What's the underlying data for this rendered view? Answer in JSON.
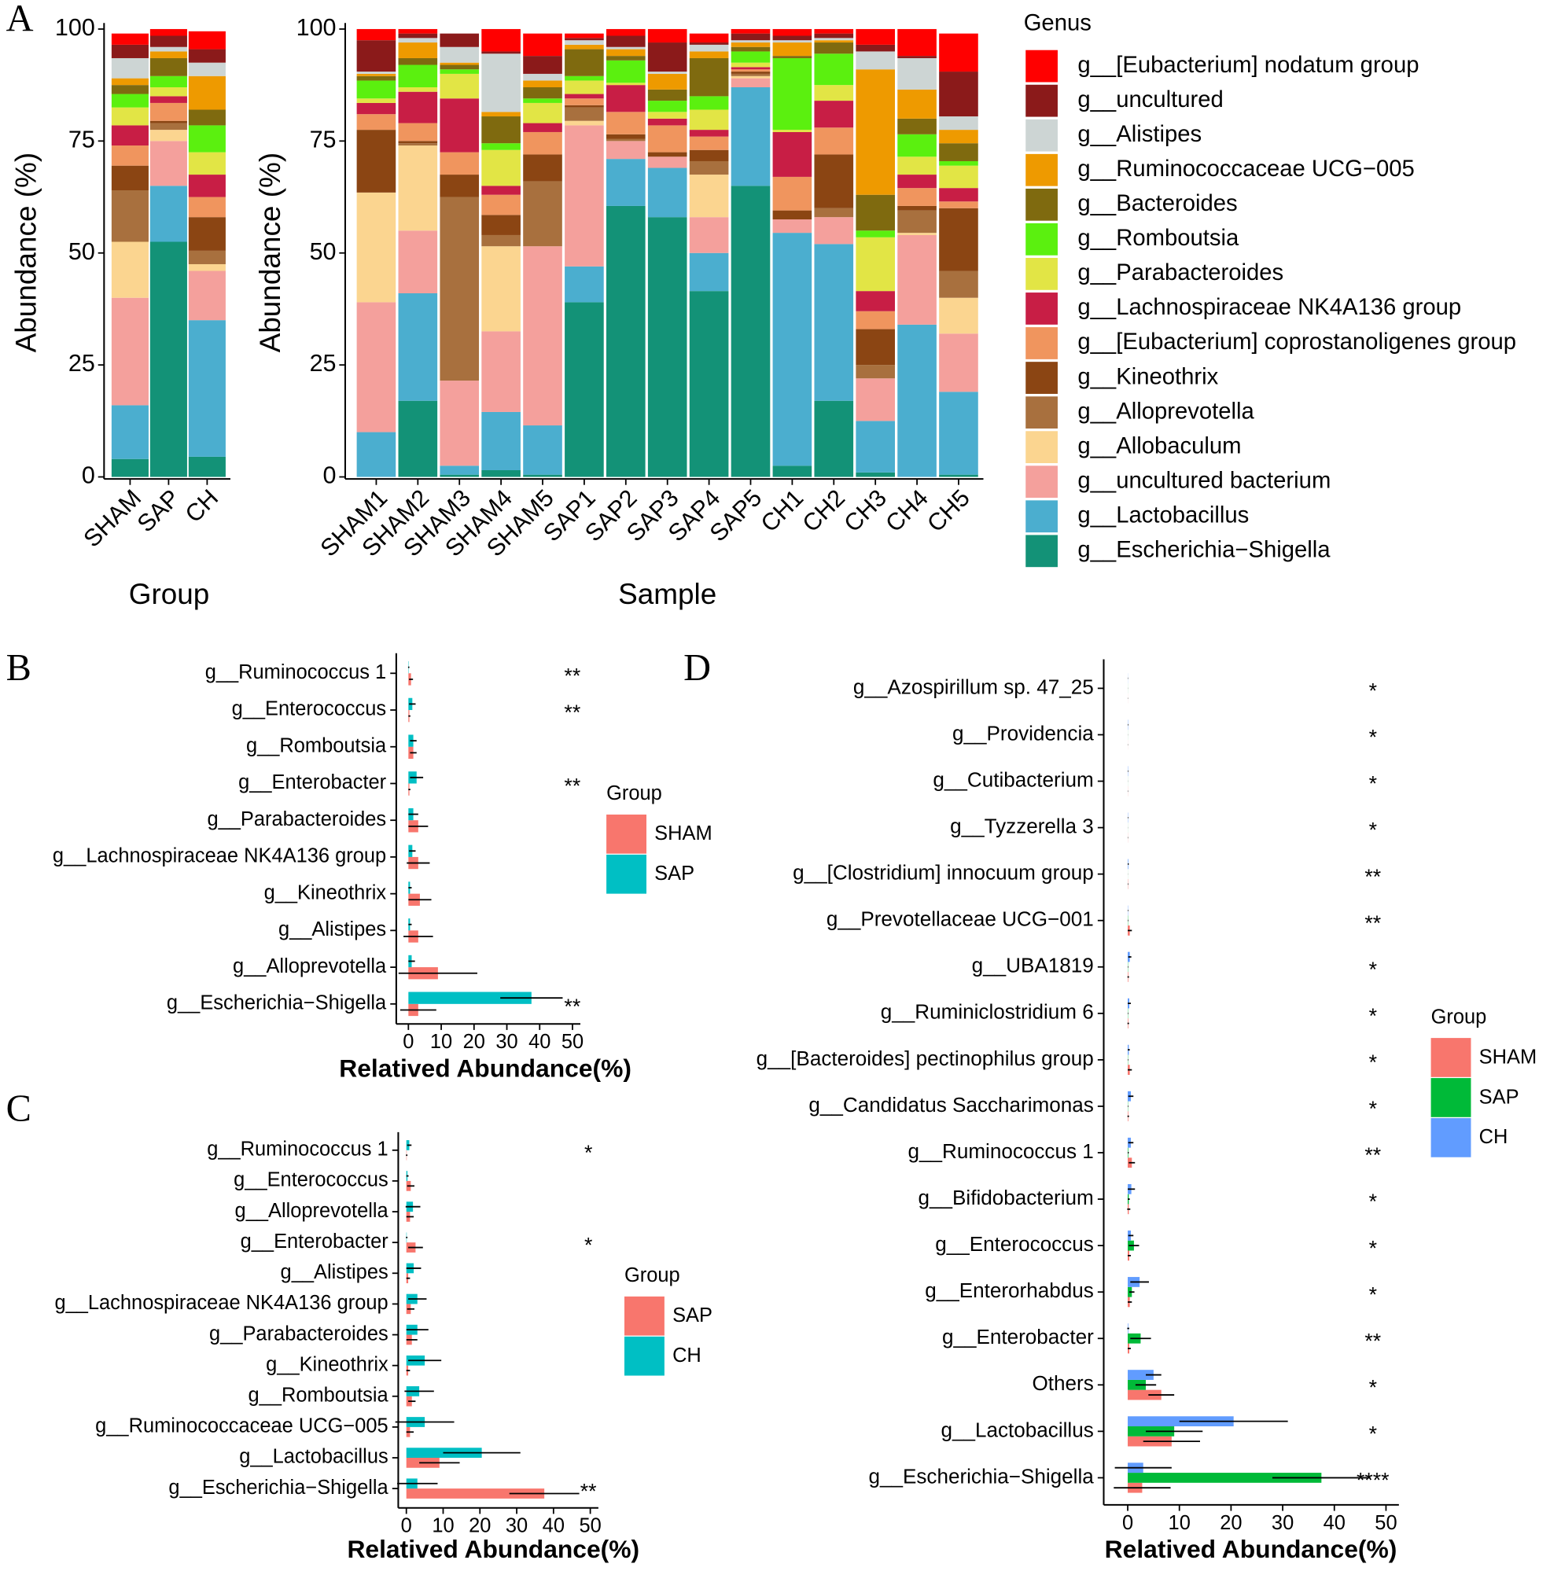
{
  "chart_data": [
    {
      "type": "stacked_bar",
      "panel_label": "A",
      "x_label": "Group",
      "y_label": "Abundance (%)",
      "categories": [
        "SHAM",
        "SAP",
        "CH"
      ],
      "ylim": [
        0,
        100
      ],
      "yticks": [
        0,
        25,
        50,
        75,
        100
      ],
      "series": [
        {
          "color": "#139277",
          "values": [
            4,
            52.5,
            4.5
          ]
        },
        {
          "color": "#4BAECF",
          "values": [
            12,
            12.5,
            30.5
          ]
        },
        {
          "color": "#F4A09C",
          "values": [
            24,
            10,
            11
          ]
        },
        {
          "color": "#FBD590",
          "values": [
            12.5,
            2.5,
            1.5
          ]
        },
        {
          "color": "#A8703E",
          "values": [
            11.5,
            1.5,
            3
          ]
        },
        {
          "color": "#8B4513",
          "values": [
            5.5,
            0.5,
            7.5
          ]
        },
        {
          "color": "#F0955E",
          "values": [
            4.5,
            4,
            4.5
          ]
        },
        {
          "color": "#C81E45",
          "values": [
            4.5,
            1.5,
            5
          ]
        },
        {
          "color": "#E2E545",
          "values": [
            4,
            2,
            5
          ]
        },
        {
          "color": "#5BF00F",
          "values": [
            3,
            2.5,
            6
          ]
        },
        {
          "color": "#7F6A0F",
          "values": [
            2,
            4,
            3.5
          ]
        },
        {
          "color": "#EE9A00",
          "values": [
            1.5,
            1.5,
            7.5
          ]
        },
        {
          "color": "#CDD5D4",
          "values": [
            4.5,
            1,
            3
          ]
        },
        {
          "color": "#8B1A1A",
          "values": [
            3,
            2.5,
            3
          ]
        },
        {
          "color": "#FF0000",
          "values": [
            2.5,
            1.5,
            4
          ]
        }
      ]
    },
    {
      "type": "stacked_bar",
      "x_label": "Sample",
      "y_label": "Abundance (%)",
      "legend_title": "Genus",
      "categories": [
        "SHAM1",
        "SHAM2",
        "SHAM3",
        "SHAM4",
        "SHAM5",
        "SAP1",
        "SAP2",
        "SAP3",
        "SAP4",
        "SAP5",
        "CH1",
        "CH2",
        "CH3",
        "CH4",
        "CH5"
      ],
      "ylim": [
        0,
        100
      ],
      "yticks": [
        0,
        25,
        50,
        75,
        100
      ],
      "series": [
        {
          "name": "g__Escherichia−Shigella",
          "color": "#139277",
          "values": [
            0,
            17,
            0.5,
            1.5,
            0.5,
            39,
            60.5,
            58,
            41.5,
            65,
            2.5,
            17,
            1,
            0,
            0.5
          ]
        },
        {
          "name": "g__Lactobacillus",
          "color": "#4BAECF",
          "values": [
            10,
            24,
            2,
            13,
            11,
            8,
            10.5,
            11,
            8.5,
            22,
            52,
            35,
            11.5,
            34,
            18.5
          ]
        },
        {
          "name": "g__uncultured bacterium",
          "color": "#F4A09C",
          "values": [
            29,
            14,
            19,
            18,
            40,
            31.5,
            4,
            2.5,
            8,
            2,
            3,
            6,
            9.5,
            20,
            13
          ]
        },
        {
          "name": "g__Allobaculum",
          "color": "#FBD590",
          "values": [
            24.5,
            19,
            0,
            19,
            0,
            1,
            0,
            0,
            9.5,
            0.5,
            0,
            0,
            0,
            0.5,
            8
          ]
        },
        {
          "name": "g__Alloprevotella",
          "color": "#A8703E",
          "values": [
            0,
            0.5,
            41,
            2.5,
            14.5,
            3,
            0.5,
            0,
            3,
            0.5,
            0,
            2,
            3,
            5,
            6
          ]
        },
        {
          "name": "g__Kineothrix",
          "color": "#8B4513",
          "values": [
            14,
            0.5,
            5,
            4.5,
            6,
            0.5,
            1,
            1,
            2.5,
            0.5,
            2,
            12,
            8,
            1,
            14
          ]
        },
        {
          "name": "g__[Eubacterium] coprostanoligenes group",
          "color": "#F0955E",
          "values": [
            3.5,
            4,
            5,
            4.5,
            5,
            1.5,
            5,
            6,
            3,
            0.5,
            7.5,
            6,
            4,
            4,
            1.5
          ]
        },
        {
          "name": "g__Lachnospiraceae NK4A136 group",
          "color": "#C81E45",
          "values": [
            2.5,
            7,
            12,
            2,
            2,
            1,
            6,
            1.5,
            1.5,
            0.5,
            10,
            6,
            4.5,
            3,
            3
          ]
        },
        {
          "name": "g__Parabacteroides",
          "color": "#E2E545",
          "values": [
            1,
            1,
            5.5,
            8,
            4.5,
            3,
            0.5,
            1.5,
            4.5,
            1,
            0.5,
            3.5,
            12,
            4,
            5
          ]
        },
        {
          "name": "g__Romboutsia",
          "color": "#5BF00F",
          "values": [
            4,
            5,
            1,
            1.5,
            1,
            1,
            5,
            2.5,
            3,
            2.5,
            16,
            7,
            1.5,
            5,
            1
          ]
        },
        {
          "name": "g__Bacteroides",
          "color": "#7F6A0F",
          "values": [
            1,
            1.5,
            1,
            6,
            2.5,
            6,
            1,
            2.5,
            8.5,
            1,
            0.5,
            2.5,
            8,
            3.5,
            4
          ]
        },
        {
          "name": "g__Ruminococcaceae UCG−005",
          "color": "#EE9A00",
          "values": [
            0.5,
            3.5,
            0.5,
            1,
            1.5,
            1,
            1.5,
            3.5,
            1.5,
            1,
            3,
            0.5,
            28,
            6.5,
            3
          ]
        },
        {
          "name": "g__Alistipes",
          "color": "#CDD5D4",
          "values": [
            0.5,
            1,
            3.5,
            13,
            1.5,
            1,
            0.5,
            0.5,
            1.5,
            0.5,
            0.5,
            0.5,
            4,
            7,
            3
          ]
        },
        {
          "name": "g__uncultured",
          "color": "#8B1A1A",
          "values": [
            7,
            1,
            3,
            0.5,
            4,
            0.5,
            2.5,
            6.5,
            0.5,
            1.5,
            1,
            1,
            1.5,
            0.5,
            10
          ]
        },
        {
          "name": "g__[Eubacterium] nodatum group",
          "color": "#FF0000",
          "values": [
            2.5,
            1,
            0,
            5,
            5,
            1,
            1.5,
            3,
            2,
            1,
            1.5,
            1,
            3.5,
            6,
            8.5
          ]
        }
      ]
    },
    {
      "type": "hbar",
      "panel_label": "B",
      "x_label": "Relatived Abundance(%)",
      "legend_title": "Group",
      "categories": [
        "g__Ruminococcus 1",
        "g__Enterococcus",
        "g__Romboutsia",
        "g__Enterobacter",
        "g__Parabacteroides",
        "g__Lachnospiraceae NK4A136 group",
        "g__Kineothrix",
        "g__Alistipes",
        "g__Alloprevotella",
        "g__Escherichia−Shigella"
      ],
      "xlim": [
        -3.7,
        52.4
      ],
      "xticks": [
        0,
        10,
        20,
        30,
        40,
        50
      ],
      "significance": [
        "**",
        "**",
        null,
        "**",
        null,
        null,
        null,
        null,
        null,
        "**"
      ],
      "series": [
        {
          "name": "SHAM",
          "color": "#F8766D",
          "values": [
            0.8,
            0.3,
            1.5,
            0.3,
            3,
            3,
            3.5,
            3,
            9,
            3
          ],
          "errors": [
            0.6,
            0.3,
            1,
            0.3,
            3,
            3.5,
            3.5,
            4.5,
            12,
            5.5
          ]
        },
        {
          "name": "SAP",
          "color": "#00BFC4",
          "values": [
            0.1,
            1.2,
            1.5,
            2.5,
            1.5,
            1.2,
            0.5,
            0.5,
            1,
            37.5
          ],
          "errors": [
            0.2,
            1,
            1,
            2,
            1.5,
            1,
            0.5,
            0.5,
            1,
            9.5
          ]
        }
      ]
    },
    {
      "type": "hbar",
      "panel_label": "C",
      "x_label": "Relatived Abundance(%)",
      "legend_title": "Group",
      "categories": [
        "g__Ruminococcus 1",
        "g__Enterococcus",
        "g__Alloprevotella",
        "g__Enterobacter",
        "g__Alistipes",
        "g__Lachnospiraceae NK4A136 group",
        "g__Parabacteroides",
        "g__Kineothrix",
        "g__Romboutsia",
        "g__Ruminococcaceae UCG−005",
        "g__Lactobacillus",
        "g__Escherichia−Shigella"
      ],
      "xlim": [
        -2.2,
        52.2
      ],
      "xticks": [
        0,
        10,
        20,
        30,
        40,
        50
      ],
      "significance": [
        "*",
        null,
        null,
        "*",
        null,
        null,
        null,
        null,
        null,
        null,
        null,
        "**"
      ],
      "series": [
        {
          "name": "SAP",
          "color": "#F8766D",
          "values": [
            0.1,
            1.2,
            1,
            2.5,
            0.5,
            1.2,
            1.5,
            0.5,
            1.5,
            1,
            9,
            37.5
          ],
          "errors": [
            0.2,
            1,
            1,
            2,
            0.5,
            1,
            1.5,
            0.5,
            1,
            1,
            5.5,
            9.5
          ]
        },
        {
          "name": "CH",
          "color": "#00BFC4",
          "values": [
            0.8,
            0.3,
            1.8,
            0.1,
            2,
            3,
            3,
            5,
            3.5,
            5,
            20.5,
            3
          ],
          "errors": [
            0.6,
            0.3,
            2,
            0.2,
            2,
            2.5,
            3,
            4.5,
            4,
            8,
            10.5,
            5.5
          ]
        }
      ]
    },
    {
      "type": "hbar",
      "panel_label": "D",
      "x_label": "Relatived Abundance(%)",
      "legend_title": "Group",
      "categories": [
        "g__Azospirillum sp. 47_25",
        "g__Providencia",
        "g__Cutibacterium",
        "g__Tyzzerella 3",
        "g__[Clostridium] innocuum group",
        "g__Prevotellaceae UCG−001",
        "g__UBA1819",
        "g__Ruminiclostridium 6",
        "g__[Bacteroides] pectinophilus group",
        "g__Candidatus Saccharimonas",
        "g__Ruminococcus 1",
        "g__Bifidobacterium",
        "g__Enterococcus",
        "g__Enterorhabdus",
        "g__Enterobacter",
        "Others",
        "g__Lactobacillus",
        "g__Escherichia−Shigella"
      ],
      "xlim": [
        -4.65,
        52.5
      ],
      "xticks": [
        0,
        10,
        20,
        30,
        40,
        50
      ],
      "significance": [
        "*",
        "*",
        "*",
        "*",
        "**",
        "**",
        "*",
        "*",
        "*",
        "*",
        "**",
        "*",
        "*",
        "*",
        "**",
        "*",
        "*",
        "****"
      ],
      "series": [
        {
          "name": "SHAM",
          "color": "#F8766D",
          "values": [
            0.01,
            0.01,
            0.02,
            0.02,
            0.05,
            0.4,
            0.1,
            0.1,
            0.4,
            0.1,
            0.8,
            0.2,
            0.3,
            0.4,
            0.3,
            6.5,
            8.5,
            2.8
          ],
          "errors": [
            0.02,
            0.02,
            0.03,
            0.03,
            0.05,
            0.4,
            0.15,
            0.15,
            0.4,
            0.15,
            0.6,
            0.3,
            0.3,
            0.4,
            0.3,
            2.5,
            5.5,
            5.5
          ]
        },
        {
          "name": "SAP",
          "color": "#00BA38",
          "values": [
            0.01,
            0.01,
            0.01,
            0.01,
            0.01,
            0.05,
            0.05,
            0.05,
            0.05,
            0.05,
            0.1,
            0.2,
            1.2,
            0.8,
            2.5,
            3.5,
            9,
            37.5
          ],
          "errors": [
            0.01,
            0.01,
            0.01,
            0.01,
            0.01,
            0.05,
            0.05,
            0.05,
            0.05,
            0.05,
            0.1,
            0.2,
            1,
            0.5,
            2,
            2,
            5.5,
            9.5
          ]
        },
        {
          "name": "CH",
          "color": "#619CFF",
          "values": [
            0.02,
            0.05,
            0.05,
            0.05,
            0.1,
            0.05,
            0.4,
            0.3,
            0.2,
            0.6,
            0.6,
            0.7,
            0.6,
            2.3,
            0.1,
            5,
            20.5,
            3
          ],
          "errors": [
            0.03,
            0.05,
            0.05,
            0.05,
            0.1,
            0.05,
            0.3,
            0.3,
            0.2,
            0.5,
            0.5,
            0.7,
            0.5,
            1.8,
            0.2,
            1.5,
            10.5,
            5.5
          ]
        }
      ]
    }
  ]
}
